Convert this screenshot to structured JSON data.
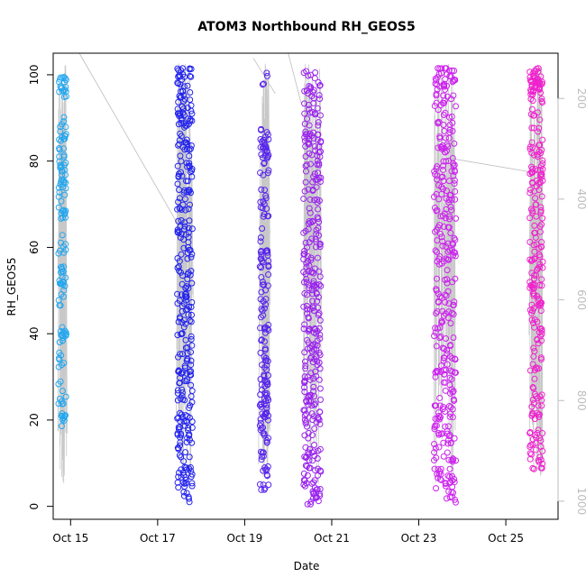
{
  "chart_data": {
    "type": "scatter",
    "title": "ATOM3 Northbound RH_GEOS5",
    "xlabel": "Date",
    "ylabel": "RH_GEOS5",
    "xlim": [
      14.6,
      26.2
    ],
    "ylim": [
      -3,
      105
    ],
    "x_ticks": [
      {
        "value": 15,
        "label": "Oct 15"
      },
      {
        "value": 17,
        "label": "Oct 17"
      },
      {
        "value": 19,
        "label": "Oct 19"
      },
      {
        "value": 21,
        "label": "Oct 21"
      },
      {
        "value": 23,
        "label": "Oct 23"
      },
      {
        "value": 25,
        "label": "Oct 25"
      }
    ],
    "y_ticks": [
      0,
      20,
      40,
      60,
      80,
      100
    ],
    "y2_axis": {
      "ticks": [
        200,
        400,
        600,
        800,
        1000
      ],
      "range": [
        1036,
        110
      ],
      "color": "#bdbdbd",
      "description": "pressure profile drawn as gray lines"
    },
    "grid": false,
    "legend": "none",
    "point_colors": {
      "Oct 14-15": "#22a7f0",
      "Oct 17-18": "#2222ee",
      "Oct 19": "#5522ee",
      "Oct 20-21": "#9922ee",
      "Oct 23-24": "#cc22ee",
      "Oct 25-26": "#ee22cc"
    },
    "groups": [
      {
        "name": "Oct 14-15",
        "color": "#22a7f0",
        "x_start": 14.72,
        "x_end": 14.9,
        "n": 150,
        "y_samples": [
          100,
          99,
          98,
          97,
          96,
          95,
          89,
          88,
          86,
          84,
          80,
          78,
          77,
          76,
          74,
          73,
          70,
          68,
          66,
          63,
          62,
          60,
          58,
          55,
          53,
          51,
          50,
          48,
          40,
          39,
          35,
          33,
          28,
          24,
          21,
          20
        ]
      },
      {
        "name": "Oct 17-18",
        "color": "#2222ee",
        "x_start": 17.45,
        "x_end": 17.8,
        "n": 320,
        "y_samples": [
          101,
          99,
          97,
          95,
          92,
          90,
          88,
          85,
          83,
          80,
          78,
          76,
          72,
          70,
          68,
          65,
          63,
          60,
          58,
          55,
          52,
          50,
          48,
          45,
          43,
          40,
          37,
          35,
          32,
          30,
          28,
          25,
          22,
          20,
          17,
          15,
          12,
          10,
          8,
          6,
          4,
          2
        ]
      },
      {
        "name": "Oct 19",
        "color": "#5522ee",
        "x_start": 19.35,
        "x_end": 19.55,
        "n": 180,
        "y_samples": [
          99,
          86,
          84,
          82,
          80,
          78,
          72,
          70,
          68,
          63,
          60,
          58,
          55,
          52,
          50,
          47,
          45,
          42,
          40,
          38,
          35,
          33,
          30,
          28,
          25,
          22,
          20,
          17,
          15,
          12,
          10,
          8,
          5
        ]
      },
      {
        "name": "Oct 20-21",
        "color": "#9922ee",
        "x_start": 20.35,
        "x_end": 20.75,
        "n": 330,
        "y_samples": [
          100,
          97,
          95,
          92,
          90,
          87,
          85,
          82,
          80,
          78,
          75,
          72,
          70,
          67,
          65,
          62,
          60,
          57,
          55,
          52,
          50,
          47,
          45,
          42,
          40,
          37,
          35,
          32,
          30,
          27,
          25,
          22,
          20,
          17,
          15,
          12,
          10,
          8,
          5,
          3,
          1
        ]
      },
      {
        "name": "Oct 23-24",
        "color": "#cc22ee",
        "x_start": 23.35,
        "x_end": 23.85,
        "n": 340,
        "y_samples": [
          101,
          99,
          98,
          96,
          94,
          92,
          90,
          88,
          86,
          84,
          82,
          80,
          78,
          76,
          74,
          72,
          70,
          68,
          66,
          64,
          62,
          60,
          58,
          56,
          54,
          52,
          50,
          48,
          46,
          44,
          42,
          40,
          38,
          36,
          34,
          32,
          30,
          28,
          26,
          24,
          22,
          20,
          18,
          16,
          14,
          12,
          10,
          8,
          6,
          4,
          2
        ]
      },
      {
        "name": "Oct 25-26",
        "color": "#ee22cc",
        "x_start": 25.55,
        "x_end": 25.85,
        "n": 260,
        "y_samples": [
          101,
          100,
          99,
          98,
          97,
          96,
          95,
          93,
          90,
          88,
          86,
          84,
          82,
          80,
          78,
          76,
          74,
          72,
          70,
          68,
          66,
          64,
          62,
          60,
          58,
          56,
          54,
          52,
          50,
          48,
          46,
          44,
          42,
          40,
          38,
          36,
          34,
          32,
          30,
          28,
          26,
          24,
          22,
          20,
          18,
          16,
          14,
          12,
          10
        ]
      }
    ]
  }
}
